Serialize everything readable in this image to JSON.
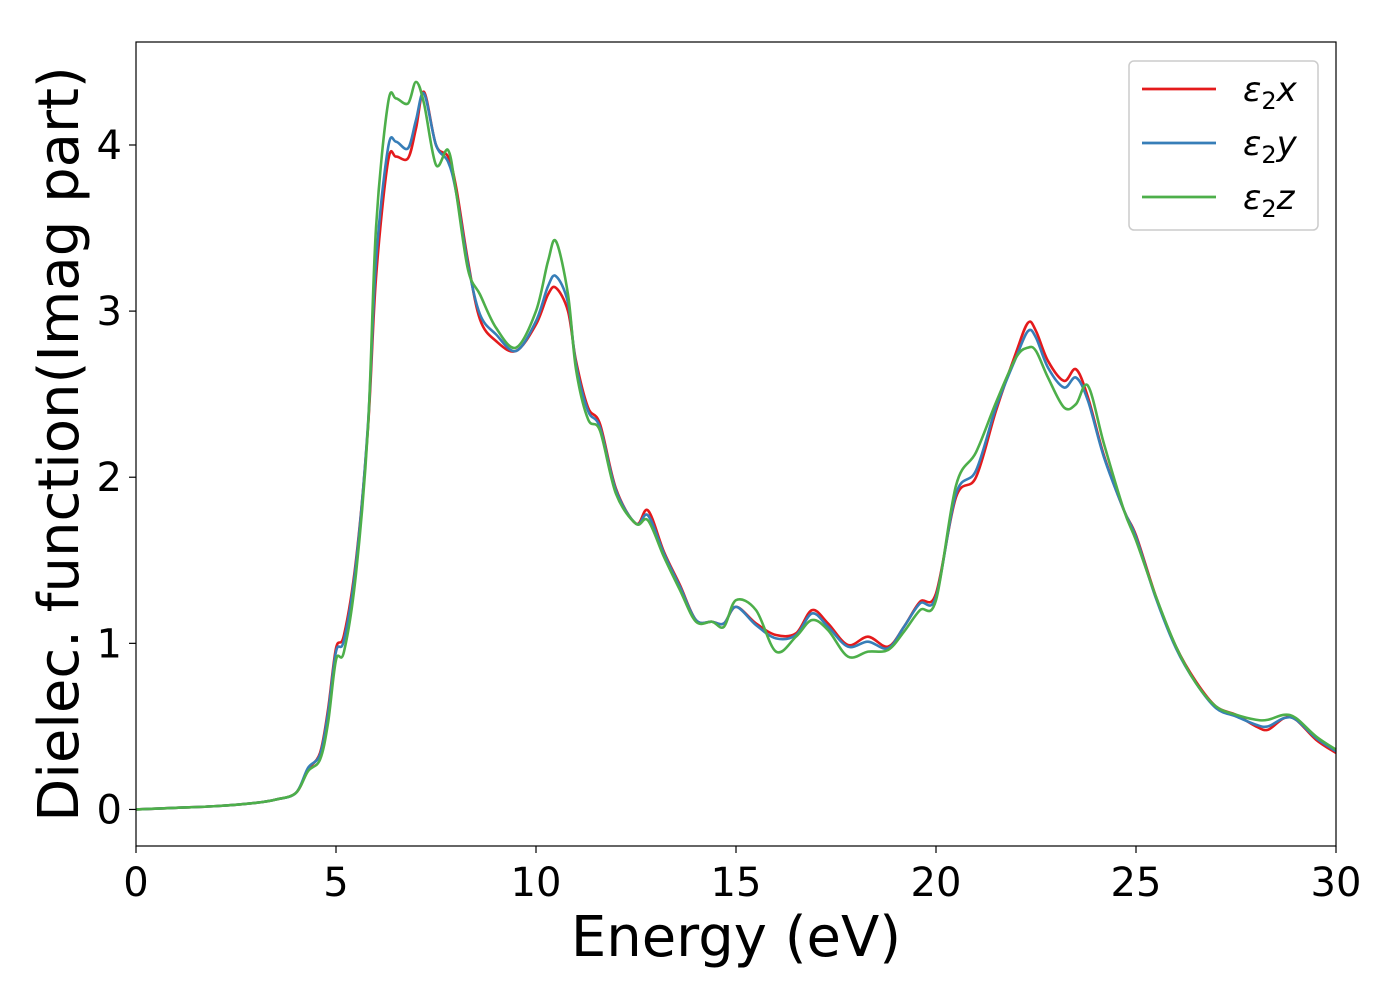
{
  "chart_data": {
    "type": "line",
    "xlabel": "Energy (eV)",
    "ylabel": "Dielec. function(Imag part)",
    "xlim": [
      0,
      30
    ],
    "ylim": [
      -0.22,
      4.62
    ],
    "xticks": [
      0,
      5,
      10,
      15,
      20,
      25,
      30
    ],
    "yticks": [
      0,
      1,
      2,
      3,
      4
    ],
    "grid": false,
    "legend": "top-right",
    "series": [
      {
        "name": "ε2x",
        "legend": {
          "base": "ε",
          "sub": "2",
          "tail": "x"
        },
        "color": "#e41a1c",
        "x": [
          0,
          1,
          2,
          3,
          3.5,
          4,
          4.3,
          4.6,
          4.8,
          5,
          5.2,
          5.5,
          5.8,
          6,
          6.3,
          6.5,
          6.8,
          7,
          7.2,
          7.5,
          7.8,
          8,
          8.3,
          8.6,
          9,
          9.5,
          10,
          10.3,
          10.5,
          10.8,
          11,
          11.3,
          11.6,
          12,
          12.5,
          12.8,
          13.2,
          13.6,
          14,
          14.4,
          14.7,
          15,
          15.5,
          16,
          16.5,
          16.9,
          17.3,
          17.8,
          18.3,
          18.8,
          19.2,
          19.6,
          20,
          20.5,
          21,
          21.5,
          22,
          22.3,
          22.5,
          22.8,
          23.2,
          23.5,
          23.8,
          24.2,
          24.7,
          25,
          25.5,
          26,
          26.5,
          27,
          27.5,
          28,
          28.3,
          28.7,
          29,
          29.5,
          30
        ],
        "values": [
          0,
          0.01,
          0.02,
          0.04,
          0.06,
          0.1,
          0.24,
          0.34,
          0.6,
          0.97,
          1.05,
          1.5,
          2.3,
          3.2,
          3.9,
          3.93,
          3.92,
          4.1,
          4.32,
          4.0,
          3.93,
          3.75,
          3.3,
          2.95,
          2.82,
          2.76,
          2.92,
          3.1,
          3.14,
          3.0,
          2.7,
          2.42,
          2.32,
          1.93,
          1.72,
          1.8,
          1.55,
          1.35,
          1.14,
          1.13,
          1.12,
          1.22,
          1.12,
          1.05,
          1.06,
          1.2,
          1.12,
          0.99,
          1.04,
          0.98,
          1.1,
          1.25,
          1.3,
          1.88,
          2.0,
          2.4,
          2.75,
          2.93,
          2.88,
          2.7,
          2.58,
          2.65,
          2.48,
          2.13,
          1.8,
          1.65,
          1.28,
          0.98,
          0.77,
          0.62,
          0.57,
          0.5,
          0.48,
          0.55,
          0.54,
          0.42,
          0.34
        ]
      },
      {
        "name": "ε2y",
        "legend": {
          "base": "ε",
          "sub": "2",
          "tail": "y"
        },
        "color": "#377eb8",
        "x": [
          0,
          1,
          2,
          3,
          3.5,
          4,
          4.3,
          4.6,
          4.8,
          5,
          5.2,
          5.5,
          5.8,
          6,
          6.3,
          6.5,
          6.8,
          7,
          7.2,
          7.5,
          7.8,
          8,
          8.3,
          8.6,
          9,
          9.5,
          10,
          10.3,
          10.5,
          10.8,
          11,
          11.3,
          11.6,
          12,
          12.5,
          12.8,
          13.2,
          13.6,
          14,
          14.4,
          14.7,
          15,
          15.5,
          16,
          16.5,
          16.9,
          17.3,
          17.8,
          18.3,
          18.8,
          19.2,
          19.6,
          20,
          20.5,
          21,
          21.5,
          22,
          22.3,
          22.5,
          22.8,
          23.2,
          23.5,
          23.8,
          24.2,
          24.7,
          25,
          25.5,
          26,
          26.5,
          27,
          27.5,
          28,
          28.3,
          28.7,
          29,
          29.5,
          30
        ],
        "values": [
          0,
          0.01,
          0.02,
          0.04,
          0.06,
          0.1,
          0.25,
          0.33,
          0.58,
          0.95,
          1.02,
          1.48,
          2.32,
          3.3,
          3.98,
          4.02,
          3.98,
          4.15,
          4.31,
          4.0,
          3.9,
          3.72,
          3.28,
          2.98,
          2.86,
          2.76,
          2.94,
          3.15,
          3.21,
          3.05,
          2.68,
          2.4,
          2.3,
          1.92,
          1.72,
          1.77,
          1.54,
          1.34,
          1.14,
          1.13,
          1.12,
          1.22,
          1.11,
          1.03,
          1.05,
          1.18,
          1.1,
          0.98,
          1.01,
          0.97,
          1.1,
          1.24,
          1.28,
          1.9,
          2.04,
          2.42,
          2.72,
          2.88,
          2.84,
          2.66,
          2.54,
          2.6,
          2.46,
          2.12,
          1.8,
          1.64,
          1.27,
          0.97,
          0.76,
          0.61,
          0.56,
          0.51,
          0.5,
          0.55,
          0.54,
          0.43,
          0.35
        ]
      },
      {
        "name": "ε2z",
        "legend": {
          "base": "ε",
          "sub": "2",
          "tail": "z"
        },
        "color": "#4daf4a",
        "x": [
          0,
          1,
          2,
          3,
          3.5,
          4,
          4.3,
          4.6,
          4.8,
          5,
          5.2,
          5.5,
          5.8,
          6,
          6.3,
          6.5,
          6.8,
          7,
          7.2,
          7.5,
          7.8,
          8,
          8.3,
          8.6,
          9,
          9.5,
          10,
          10.3,
          10.5,
          10.8,
          11,
          11.3,
          11.6,
          12,
          12.5,
          12.8,
          13.2,
          13.6,
          14,
          14.4,
          14.7,
          15,
          15.5,
          16,
          16.5,
          16.9,
          17.3,
          17.8,
          18.3,
          18.8,
          19.2,
          19.6,
          20,
          20.5,
          21,
          21.5,
          22,
          22.3,
          22.5,
          22.8,
          23.2,
          23.5,
          23.8,
          24.2,
          24.7,
          25,
          25.5,
          26,
          26.5,
          27,
          27.5,
          28,
          28.3,
          28.7,
          29,
          29.5,
          30
        ],
        "values": [
          0,
          0.01,
          0.02,
          0.04,
          0.06,
          0.1,
          0.23,
          0.3,
          0.52,
          0.9,
          0.95,
          1.42,
          2.3,
          3.5,
          4.25,
          4.28,
          4.25,
          4.38,
          4.25,
          3.88,
          3.97,
          3.72,
          3.25,
          3.1,
          2.9,
          2.78,
          3.0,
          3.3,
          3.42,
          3.1,
          2.65,
          2.35,
          2.28,
          1.9,
          1.72,
          1.74,
          1.52,
          1.32,
          1.13,
          1.13,
          1.1,
          1.26,
          1.2,
          0.95,
          1.04,
          1.14,
          1.08,
          0.92,
          0.95,
          0.96,
          1.07,
          1.2,
          1.26,
          1.95,
          2.15,
          2.45,
          2.72,
          2.78,
          2.76,
          2.6,
          2.42,
          2.44,
          2.55,
          2.2,
          1.8,
          1.62,
          1.28,
          0.98,
          0.76,
          0.62,
          0.57,
          0.54,
          0.54,
          0.57,
          0.55,
          0.44,
          0.36
        ]
      }
    ]
  }
}
